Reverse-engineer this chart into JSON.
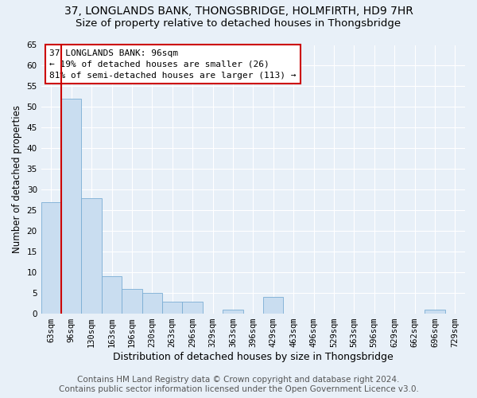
{
  "title1": "37, LONGLANDS BANK, THONGSBRIDGE, HOLMFIRTH, HD9 7HR",
  "title2": "Size of property relative to detached houses in Thongsbridge",
  "xlabel": "Distribution of detached houses by size in Thongsbridge",
  "ylabel": "Number of detached properties",
  "categories": [
    "63sqm",
    "96sqm",
    "130sqm",
    "163sqm",
    "196sqm",
    "230sqm",
    "263sqm",
    "296sqm",
    "329sqm",
    "363sqm",
    "396sqm",
    "429sqm",
    "463sqm",
    "496sqm",
    "529sqm",
    "563sqm",
    "596sqm",
    "629sqm",
    "662sqm",
    "696sqm",
    "729sqm"
  ],
  "values": [
    27,
    52,
    28,
    9,
    6,
    5,
    3,
    3,
    0,
    1,
    0,
    4,
    0,
    0,
    0,
    0,
    0,
    0,
    0,
    1,
    0
  ],
  "bar_color": "#c9ddf0",
  "bar_edge_color": "#7aadd4",
  "highlight_index": 1,
  "highlight_line_color": "#cc0000",
  "ylim": [
    0,
    65
  ],
  "yticks": [
    0,
    5,
    10,
    15,
    20,
    25,
    30,
    35,
    40,
    45,
    50,
    55,
    60,
    65
  ],
  "annotation_title": "37 LONGLANDS BANK: 96sqm",
  "annotation_line1": "← 19% of detached houses are smaller (26)",
  "annotation_line2": "81% of semi-detached houses are larger (113) →",
  "annotation_box_color": "#ffffff",
  "annotation_box_edge": "#cc0000",
  "footer1": "Contains HM Land Registry data © Crown copyright and database right 2024.",
  "footer2": "Contains public sector information licensed under the Open Government Licence v3.0.",
  "bg_color": "#e8f0f8",
  "grid_color": "#ffffff",
  "title_fontsize": 10,
  "subtitle_fontsize": 9.5,
  "ylabel_fontsize": 8.5,
  "xlabel_fontsize": 9,
  "tick_fontsize": 7.5,
  "annotation_fontsize": 8,
  "footer_fontsize": 7.5
}
